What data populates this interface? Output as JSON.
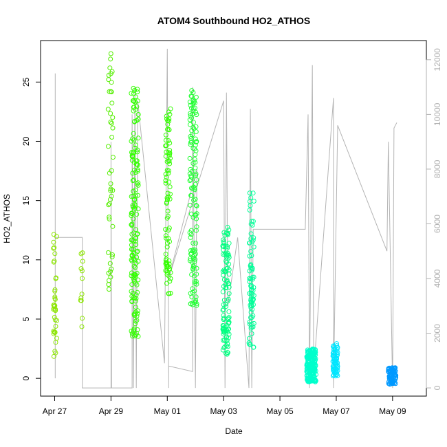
{
  "chart_data": {
    "type": "scatter",
    "title": "ATOM4 Southbound HO2_ATHOS",
    "xlabel": "Date",
    "ylabel": "HO2_ATHOS",
    "x_ticks": [
      "Apr 27",
      "Apr 29",
      "May 01",
      "May 03",
      "May 05",
      "May 07",
      "May 09"
    ],
    "x_tick_values": [
      0,
      2,
      4,
      6,
      8,
      10,
      12
    ],
    "y_ticks": [
      0,
      5,
      10,
      15,
      20,
      25
    ],
    "ylim": [
      -1.5,
      28.5
    ],
    "xlim": [
      -0.5,
      13.2
    ],
    "y2_ticks": [
      0,
      2000,
      4000,
      6000,
      8000,
      10000,
      12000
    ],
    "y2lim": [
      -300,
      12700
    ],
    "colors": {
      "points_a": "#8ce600",
      "points_b": "#33ff00",
      "points_c": "#00ff80",
      "points_d": "#00ffcc",
      "points_e": "#00e6ff",
      "points_f": "#0099ff",
      "altitude_line": "#b4b4b4"
    },
    "clusters": [
      {
        "x0": -0.05,
        "x1": 0.08,
        "ymin": 1.3,
        "ymax": 12.3,
        "n": 35,
        "color": "#8ce600"
      },
      {
        "x0": 0.92,
        "x1": 1.0,
        "ymin": 4.2,
        "ymax": 10.8,
        "n": 12,
        "color": "#8ce600"
      },
      {
        "x0": -0.02,
        "x1": 0.02,
        "ymin": 5.5,
        "ymax": 6.2,
        "n": 4,
        "color": "#8ce600"
      },
      {
        "x0": 1.9,
        "x1": 2.08,
        "ymin": 7.5,
        "ymax": 27.6,
        "n": 45,
        "color": "#55ee00"
      },
      {
        "x0": 2.72,
        "x1": 2.98,
        "ymin": 3.5,
        "ymax": 24.5,
        "n": 160,
        "color": "#33ff00"
      },
      {
        "x0": 3.93,
        "x1": 4.12,
        "ymin": 7.1,
        "ymax": 23.0,
        "n": 85,
        "color": "#33ff00"
      },
      {
        "x0": 4.8,
        "x1": 5.05,
        "ymin": 6.0,
        "ymax": 24.5,
        "n": 130,
        "color": "#22ff33"
      },
      {
        "x0": 5.97,
        "x1": 6.2,
        "ymin": 2.0,
        "ymax": 13.0,
        "n": 110,
        "color": "#00ff80"
      },
      {
        "x0": 6.9,
        "x1": 7.08,
        "ymin": 2.6,
        "ymax": 15.8,
        "n": 80,
        "color": "#00ff99"
      },
      {
        "x0": 8.95,
        "x1": 9.28,
        "ymin": -0.3,
        "ymax": 2.5,
        "n": 200,
        "color": "#00ffcc"
      },
      {
        "x0": 9.88,
        "x1": 10.05,
        "ymin": 0.2,
        "ymax": 3.0,
        "n": 70,
        "color": "#00e6ff"
      },
      {
        "x0": 11.85,
        "x1": 12.12,
        "ymin": -0.5,
        "ymax": 0.9,
        "n": 80,
        "color": "#0099ff"
      }
    ],
    "altitude_path": [
      [
        0.02,
        350
      ],
      [
        0.02,
        11500
      ],
      [
        0.02,
        9600
      ],
      [
        0.02,
        5500
      ],
      [
        0.98,
        5500
      ],
      [
        0.98,
        0
      ],
      [
        2.0,
        0
      ],
      [
        2.0,
        9000
      ],
      [
        2.02,
        0
      ],
      [
        2.75,
        0
      ],
      [
        2.75,
        10000
      ],
      [
        2.8,
        0
      ],
      [
        2.85,
        11000
      ],
      [
        2.9,
        0
      ],
      [
        2.95,
        10500
      ],
      [
        3.9,
        900
      ],
      [
        4.0,
        12400
      ],
      [
        4.05,
        0
      ],
      [
        4.05,
        800
      ],
      [
        4.9,
        600
      ],
      [
        4.9,
        11000
      ],
      [
        5.0,
        0
      ],
      [
        5.05,
        8000
      ],
      [
        4.05,
        4000
      ],
      [
        6.0,
        10500
      ],
      [
        6.05,
        0
      ],
      [
        6.1,
        10800
      ],
      [
        6.15,
        3000
      ],
      [
        6.5,
        5500
      ],
      [
        6.9,
        0
      ],
      [
        6.95,
        10200
      ],
      [
        7.0,
        0
      ],
      [
        7.05,
        5800
      ],
      [
        8.9,
        5800
      ],
      [
        9.0,
        10000
      ],
      [
        9.05,
        0
      ],
      [
        9.15,
        11800
      ],
      [
        9.2,
        600
      ],
      [
        9.9,
        10600
      ],
      [
        9.9,
        0
      ],
      [
        10.05,
        9600
      ],
      [
        11.8,
        5000
      ],
      [
        11.85,
        9000
      ],
      [
        12.0,
        0
      ],
      [
        12.05,
        9500
      ],
      [
        12.15,
        9700
      ]
    ]
  }
}
